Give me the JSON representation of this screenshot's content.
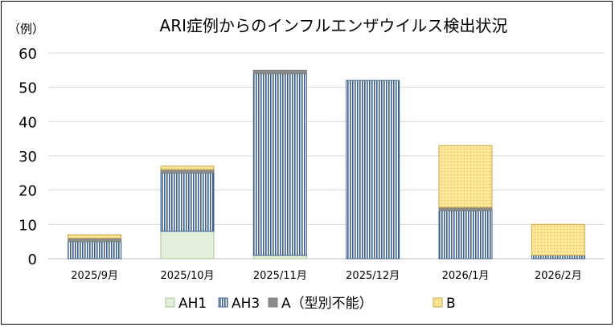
{
  "chart_data": {
    "type": "bar",
    "stacked": true,
    "title": "ARI症例からのインフルエンザウイルス検出状況",
    "ylabel": "（例）",
    "xlabel": "",
    "ylim": [
      0,
      60
    ],
    "yticks": [
      0,
      10,
      20,
      30,
      40,
      50,
      60
    ],
    "grid": true,
    "legend_position": "bottom",
    "categories": [
      "2025/9月",
      "2025/10月",
      "2025/11月",
      "2025/12月",
      "2026/1月",
      "2026/2月"
    ],
    "series": [
      {
        "name": "AH1",
        "values": [
          0,
          8,
          1,
          0,
          0,
          0
        ],
        "color": "#e2efda",
        "pattern": "none"
      },
      {
        "name": "AH3",
        "values": [
          5,
          17,
          53,
          52,
          14,
          1
        ],
        "color": "#3b5f8a",
        "pattern": "vertical-stripes"
      },
      {
        "name": "A（型別不能）",
        "values": [
          1,
          1,
          1,
          0,
          1,
          0
        ],
        "color": "#8c8c8c",
        "pattern": "solid"
      },
      {
        "name": "B",
        "values": [
          1,
          1,
          0,
          0,
          18,
          9
        ],
        "color": "#ffe699",
        "pattern": "dots"
      }
    ]
  }
}
